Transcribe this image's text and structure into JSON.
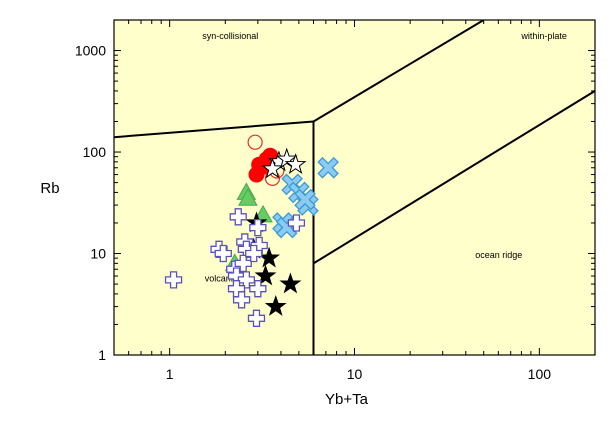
{
  "chart_data": {
    "type": "scatter",
    "title": "",
    "xlabel": "Yb+Ta",
    "ylabel": "Rb",
    "x_scale": "log",
    "y_scale": "log",
    "xlim": [
      0.5,
      200
    ],
    "ylim": [
      1,
      2000
    ],
    "x_tick_labels": [
      "1",
      "10",
      "100"
    ],
    "y_tick_labels": [
      "1",
      "10",
      "100",
      "1000"
    ],
    "grid": false,
    "background_color": "#ffffcc",
    "region_labels": [
      {
        "text": "syn-collisional",
        "x": 1.5,
        "y": 1300
      },
      {
        "text": "within-plate",
        "x": 80,
        "y": 1300
      },
      {
        "text": "ocean ridge",
        "x": 45,
        "y": 9
      },
      {
        "text": "volcanic arc",
        "x": 1.55,
        "y": 5.3
      }
    ],
    "boundaries": [
      {
        "points": [
          [
            0.5,
            140
          ],
          [
            6,
            200
          ]
        ]
      },
      {
        "points": [
          [
            6,
            200
          ],
          [
            6,
            1
          ]
        ]
      },
      {
        "points": [
          [
            6,
            200
          ],
          [
            50,
            2000
          ]
        ]
      },
      {
        "points": [
          [
            6,
            8
          ],
          [
            200,
            400
          ]
        ]
      }
    ],
    "series": [
      {
        "marker": "filled-circle",
        "color": "#ff0000",
        "x": [
          2.95,
          3.05,
          3.35,
          3.5,
          3.25
        ],
        "y": [
          60,
          75,
          85,
          92,
          72
        ]
      },
      {
        "marker": "open-circle",
        "color": "#e03030",
        "x": [
          2.9,
          3.6,
          3.8
        ],
        "y": [
          125,
          55,
          65
        ]
      },
      {
        "marker": "open-star",
        "color": "#000000",
        "x": [
          3.9,
          4.3,
          4.8,
          3.6
        ],
        "y": [
          80,
          85,
          75,
          68
        ]
      },
      {
        "marker": "x-cross",
        "color": "#3a9ad6",
        "x": [
          7.2,
          4.6,
          5.0,
          5.6,
          5.4,
          4.1,
          4.3
        ],
        "y": [
          70,
          48,
          40,
          30,
          34,
          20,
          18
        ]
      },
      {
        "marker": "filled-triangle",
        "color": "#66cc66",
        "x": [
          2.6,
          2.65,
          3.2,
          2.25
        ],
        "y": [
          40,
          35,
          24,
          8
        ]
      },
      {
        "marker": "filled-star",
        "color": "#000000",
        "x": [
          2.95,
          2.85,
          3.45,
          3.3,
          4.5,
          3.75
        ],
        "y": [
          20,
          11,
          9,
          6,
          5,
          3
        ]
      },
      {
        "marker": "open-plus",
        "color": "#5a52b8",
        "x": [
          2.35,
          3.0,
          2.55,
          2.6,
          1.85,
          1.95,
          2.25,
          2.3,
          2.6,
          2.3,
          2.45,
          3.0,
          2.5,
          1.05,
          2.95,
          4.85,
          3.05,
          2.85
        ],
        "y": [
          23,
          18,
          13,
          11,
          11,
          10,
          7,
          6,
          5.5,
          4.5,
          3.5,
          4.5,
          8,
          5.5,
          2.3,
          20,
          12,
          10
        ]
      }
    ]
  }
}
